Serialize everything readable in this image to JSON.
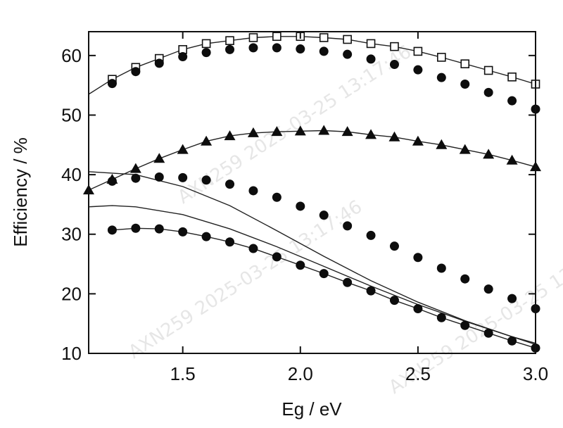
{
  "chart_data": {
    "type": "scatter",
    "title": "",
    "xlabel": "Eg / eV",
    "ylabel": "Efficiency / %",
    "xlim": [
      1.1,
      3.0
    ],
    "ylim": [
      10,
      64
    ],
    "xticks": [
      1.5,
      2.0,
      2.5,
      3.0
    ],
    "xtick_labels": [
      "1.5",
      "2.0",
      "2.5",
      "3.0"
    ],
    "yticks": [
      10,
      20,
      30,
      40,
      50,
      60
    ],
    "ytick_labels": [
      "10",
      "20",
      "30",
      "40",
      "50",
      "60"
    ],
    "grid": false,
    "legend": "none",
    "series": [
      {
        "name": "open-squares-line",
        "marker": "square-open",
        "line": true,
        "line_y_start": 53.5,
        "x": [
          1.2,
          1.3,
          1.4,
          1.5,
          1.6,
          1.7,
          1.8,
          1.9,
          2.0,
          2.1,
          2.2,
          2.3,
          2.4,
          2.5,
          2.6,
          2.7,
          2.8,
          2.9,
          3.0
        ],
        "values": [
          56,
          58,
          59.5,
          61,
          62,
          62.5,
          63,
          63.2,
          63.2,
          63,
          62.7,
          62,
          61.5,
          60.7,
          59.7,
          58.6,
          57.5,
          56.4,
          55.2
        ]
      },
      {
        "name": "filled-circles-top",
        "marker": "circle-filled",
        "line": false,
        "x": [
          1.2,
          1.3,
          1.4,
          1.5,
          1.6,
          1.7,
          1.8,
          1.9,
          2.0,
          2.1,
          2.2,
          2.3,
          2.4,
          2.5,
          2.6,
          2.7,
          2.8,
          2.9,
          3.0
        ],
        "values": [
          55.3,
          57.3,
          58.7,
          59.8,
          60.5,
          61,
          61.3,
          61.3,
          61.1,
          60.7,
          60.2,
          59.4,
          58.5,
          57.6,
          56.3,
          55.2,
          53.8,
          52.4,
          51
        ]
      },
      {
        "name": "filled-triangles-line",
        "marker": "triangle-filled",
        "line": true,
        "x": [
          1.1,
          1.2,
          1.3,
          1.4,
          1.5,
          1.6,
          1.7,
          1.8,
          1.9,
          2.0,
          2.1,
          2.2,
          2.3,
          2.4,
          2.5,
          2.6,
          2.7,
          2.8,
          2.9,
          3.0
        ],
        "values": [
          37.4,
          39.2,
          41,
          42.7,
          44.2,
          45.6,
          46.5,
          47,
          47.2,
          47.3,
          47.4,
          47.2,
          46.7,
          46.3,
          45.6,
          45,
          44.2,
          43.4,
          42.4,
          41.3
        ]
      },
      {
        "name": "filled-circles-middle",
        "marker": "circle-filled",
        "line": false,
        "x": [
          1.2,
          1.3,
          1.4,
          1.5,
          1.6,
          1.7,
          1.8,
          1.9,
          2.0,
          2.1,
          2.2,
          2.3,
          2.4,
          2.5,
          2.6,
          2.7,
          2.8,
          2.9,
          3.0
        ],
        "values": [
          38.9,
          39.4,
          39.6,
          39.5,
          39.1,
          38.4,
          37.3,
          36.2,
          34.7,
          33.2,
          31.4,
          29.8,
          28,
          26.1,
          24.3,
          22.5,
          20.8,
          19.2,
          17.5
        ]
      },
      {
        "name": "solid-line-upper",
        "marker": "none",
        "line": true,
        "x": [
          1.1,
          1.3,
          1.5,
          1.7,
          1.9,
          2.1,
          2.3,
          2.5,
          2.7,
          2.9,
          3.0
        ],
        "values": [
          40.5,
          40.0,
          38.0,
          34.8,
          30.6,
          26.3,
          22.2,
          18.6,
          15.5,
          12.8,
          11.7
        ]
      },
      {
        "name": "solid-line-lower",
        "marker": "none",
        "line": true,
        "x": [
          1.1,
          1.2,
          1.3,
          1.5,
          1.7,
          1.9,
          2.1,
          2.3,
          2.5,
          2.7,
          2.9,
          3.0
        ],
        "values": [
          34.6,
          34.8,
          34.6,
          33.3,
          30.9,
          27.9,
          24.6,
          21.3,
          18.2,
          15.4,
          12.8,
          11.5
        ]
      },
      {
        "name": "filled-circles-bottom-line",
        "marker": "circle-filled",
        "line": true,
        "x": [
          1.2,
          1.3,
          1.4,
          1.5,
          1.6,
          1.7,
          1.8,
          1.9,
          2.0,
          2.1,
          2.2,
          2.3,
          2.4,
          2.5,
          2.6,
          2.7,
          2.8,
          2.9,
          3.0
        ],
        "values": [
          30.7,
          31,
          30.9,
          30.4,
          29.6,
          28.7,
          27.6,
          26.2,
          24.8,
          23.4,
          21.9,
          20.5,
          18.9,
          17.5,
          16,
          14.7,
          13.4,
          12.1,
          10.9
        ]
      }
    ]
  },
  "watermarks": [
    "AXN259 2025-03-25 13:17:46",
    "AXN259 2025-03-25 13:17:46",
    "AXN259 2025-03-25 13:17:46"
  ]
}
